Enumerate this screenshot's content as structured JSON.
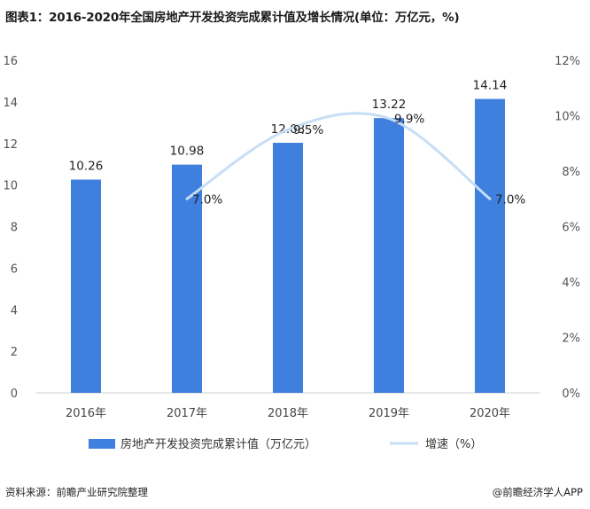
{
  "title": "图表1：2016-2020年全国房地产开发投资完成累计值及增长情况(单位：万亿元，%)",
  "source": "资料来源：前瞻产业研究院整理",
  "brand": "@前瞻经济学人APP",
  "colors": {
    "bar": "#3f7fdd",
    "line": "#c7def5"
  },
  "chart_data": {
    "type": "bar",
    "categories": [
      "2016年",
      "2017年",
      "2018年",
      "2019年",
      "2020年"
    ],
    "series": [
      {
        "name": "房地产开发投资完成累计值（万亿元）",
        "type": "bar",
        "axis": "left",
        "values": [
          10.26,
          10.98,
          12.03,
          13.22,
          14.14
        ],
        "labels": [
          "10.26",
          "10.98",
          "12.03",
          "13.22",
          "14.14"
        ]
      },
      {
        "name": "增速（%）",
        "type": "line",
        "axis": "right",
        "values": [
          null,
          7.0,
          9.5,
          9.9,
          7.0
        ],
        "labels": [
          "",
          "7.0%",
          "9.5%",
          "9.9%",
          "7.0%"
        ]
      }
    ],
    "y_left": {
      "min": 0,
      "max": 16,
      "ticks": [
        "0",
        "2",
        "4",
        "6",
        "8",
        "10",
        "12",
        "14",
        "16"
      ]
    },
    "y_right": {
      "min": 0,
      "max": 12,
      "ticks": [
        "0%",
        "2%",
        "4%",
        "6%",
        "8%",
        "10%",
        "12%"
      ]
    },
    "xlabel": "",
    "ylabel": "",
    "grid": false,
    "legend": "bottom"
  }
}
